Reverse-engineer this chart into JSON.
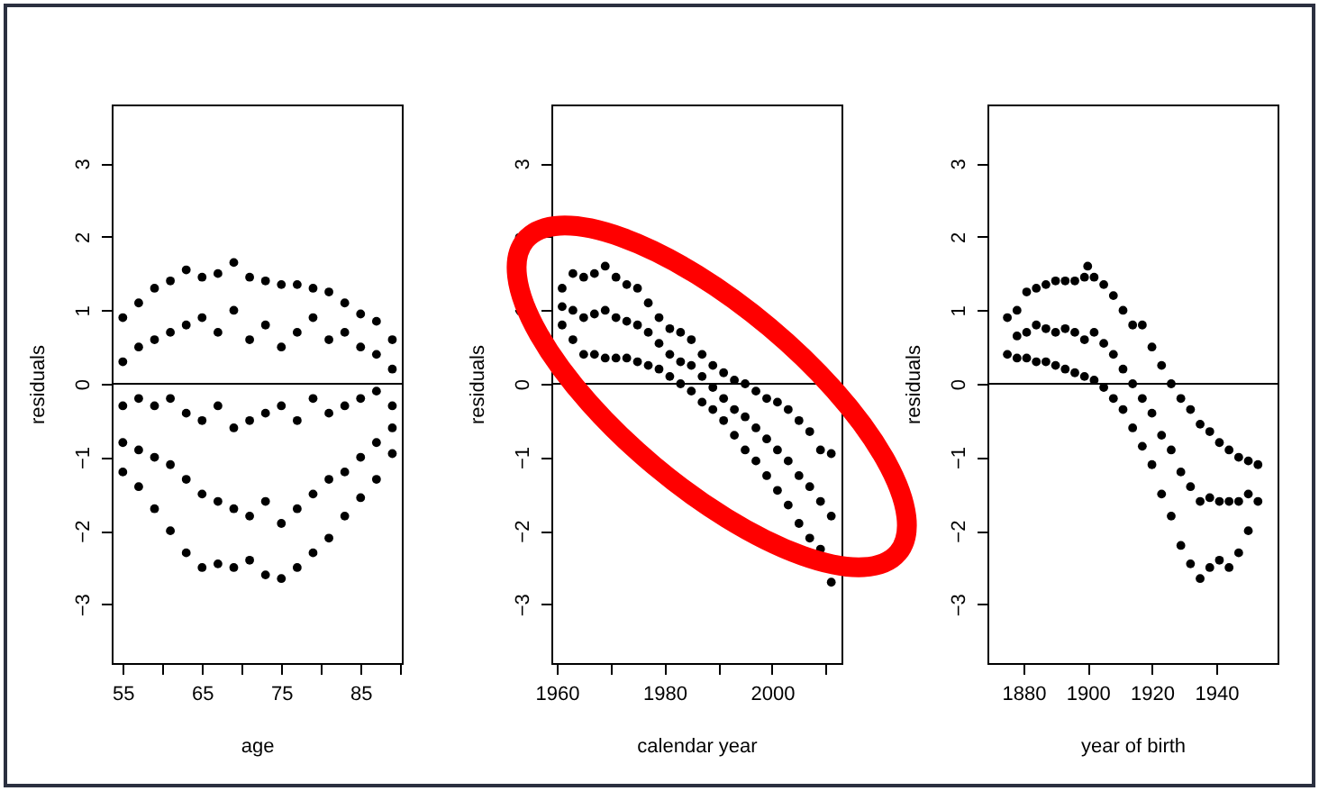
{
  "chart_data": [
    {
      "type": "scatter",
      "xlabel": "age",
      "ylabel": "residuals",
      "marker": "circle",
      "grid": false,
      "xlim": [
        53.6,
        90.2
      ],
      "xticks": [
        55,
        {
          "value": 60,
          "label": null
        },
        65,
        {
          "value": 70,
          "label": null
        },
        75,
        {
          "value": 80,
          "label": null
        },
        85,
        {
          "value": 90,
          "label": null
        }
      ],
      "ylim": [
        -3.8,
        3.8
      ],
      "yticks": [
        -3,
        -2,
        -1,
        0,
        1,
        2,
        3
      ],
      "ref_lines": [
        {
          "axis": "y",
          "value": 0,
          "color": "#000000"
        }
      ],
      "series": [
        {
          "color": "#000000",
          "x": [
            55,
            55,
            55,
            55,
            55,
            57,
            57,
            57,
            57,
            57,
            59,
            59,
            59,
            59,
            59,
            61,
            61,
            61,
            61,
            61,
            63,
            63,
            63,
            63,
            63,
            65,
            65,
            65,
            65,
            65,
            67,
            67,
            67,
            67,
            67,
            69,
            69,
            69,
            69,
            69,
            71,
            71,
            71,
            71,
            71,
            73,
            73,
            73,
            73,
            73,
            75,
            75,
            75,
            75,
            75,
            77,
            77,
            77,
            77,
            77,
            79,
            79,
            79,
            79,
            79,
            81,
            81,
            81,
            81,
            81,
            83,
            83,
            83,
            83,
            83,
            85,
            85,
            85,
            85,
            85,
            87,
            87,
            87,
            87,
            87,
            89,
            89,
            89,
            89,
            89
          ],
          "values": [
            0.9,
            0.3,
            -0.3,
            -0.8,
            -1.2,
            1.1,
            0.5,
            -0.2,
            -0.9,
            -1.4,
            1.3,
            0.6,
            -0.3,
            -1.0,
            -1.7,
            1.4,
            0.7,
            -0.2,
            -1.1,
            -2.0,
            1.55,
            0.8,
            -0.4,
            -1.3,
            -2.3,
            1.45,
            0.9,
            -0.5,
            -1.5,
            -2.5,
            1.5,
            0.7,
            -0.3,
            -1.6,
            -2.45,
            1.65,
            1.0,
            -0.6,
            -1.7,
            -2.5,
            1.45,
            0.6,
            -0.5,
            -1.8,
            -2.4,
            1.4,
            0.8,
            -0.4,
            -1.6,
            -2.6,
            1.35,
            0.5,
            -0.3,
            -1.9,
            -2.65,
            1.35,
            0.7,
            -0.5,
            -1.7,
            -2.5,
            1.3,
            0.9,
            -0.2,
            -1.5,
            -2.3,
            1.25,
            0.6,
            -0.4,
            -1.3,
            -2.1,
            1.1,
            0.7,
            -0.3,
            -1.2,
            -1.8,
            0.95,
            0.5,
            -0.2,
            -1.0,
            -1.55,
            0.85,
            0.4,
            -0.1,
            -0.8,
            -1.3,
            0.6,
            0.2,
            -0.3,
            -0.6,
            -0.95
          ]
        }
      ]
    },
    {
      "type": "scatter",
      "xlabel": "calendar year",
      "ylabel": "residuals",
      "marker": "circle",
      "grid": false,
      "xlim": [
        1959,
        2012.9
      ],
      "xticks": [
        1960,
        {
          "value": 1970,
          "label": null
        },
        1980,
        {
          "value": 1990,
          "label": null
        },
        2000,
        {
          "value": 2010,
          "label": null
        }
      ],
      "ylim": [
        -3.8,
        3.8
      ],
      "yticks": [
        -3,
        -2,
        -1,
        0,
        1,
        2,
        3
      ],
      "ref_lines": [
        {
          "axis": "y",
          "value": 0,
          "color": "#000000"
        }
      ],
      "series": [
        {
          "color": "#000000",
          "x": [
            1961,
            1961,
            1961,
            1963,
            1963,
            1963,
            1965,
            1965,
            1965,
            1967,
            1967,
            1967,
            1969,
            1969,
            1969,
            1971,
            1971,
            1971,
            1973,
            1973,
            1973,
            1975,
            1975,
            1975,
            1977,
            1977,
            1977,
            1979,
            1979,
            1979,
            1981,
            1981,
            1981,
            1983,
            1983,
            1983,
            1985,
            1985,
            1985,
            1987,
            1987,
            1987,
            1989,
            1989,
            1989,
            1991,
            1991,
            1991,
            1993,
            1993,
            1993,
            1995,
            1995,
            1995,
            1997,
            1997,
            1997,
            1999,
            1999,
            1999,
            2001,
            2001,
            2001,
            2003,
            2003,
            2003,
            2005,
            2005,
            2005,
            2007,
            2007,
            2007,
            2009,
            2009,
            2009,
            2011,
            2011,
            2011
          ],
          "values": [
            1.3,
            1.05,
            0.8,
            1.5,
            1.0,
            0.6,
            1.45,
            0.9,
            0.4,
            1.5,
            0.95,
            0.4,
            1.6,
            1.0,
            0.35,
            1.45,
            0.9,
            0.35,
            1.35,
            0.85,
            0.35,
            1.3,
            0.8,
            0.3,
            1.1,
            0.7,
            0.25,
            0.9,
            0.55,
            0.2,
            0.75,
            0.4,
            0.1,
            0.7,
            0.3,
            0.0,
            0.6,
            0.25,
            -0.1,
            0.4,
            0.1,
            -0.25,
            0.25,
            -0.05,
            -0.35,
            0.15,
            -0.2,
            -0.5,
            0.05,
            -0.35,
            -0.7,
            0.0,
            -0.45,
            -0.9,
            -0.1,
            -0.6,
            -1.05,
            -0.2,
            -0.75,
            -1.25,
            -0.25,
            -0.9,
            -1.45,
            -0.35,
            -1.05,
            -1.65,
            -0.5,
            -1.25,
            -1.9,
            -0.65,
            -1.4,
            -2.1,
            -0.9,
            -1.6,
            -2.25,
            -0.95,
            -1.8,
            -2.7
          ]
        }
      ]
    },
    {
      "type": "scatter",
      "xlabel": "year of birth",
      "ylabel": "residuals",
      "marker": "circle",
      "grid": false,
      "xlim": [
        1868.8,
        1959.1
      ],
      "xticks": [
        1880,
        1900,
        1920,
        1940
      ],
      "ylim": [
        -3.8,
        3.8
      ],
      "yticks": [
        -3,
        -2,
        -1,
        0,
        1,
        2,
        3
      ],
      "ref_lines": [
        {
          "axis": "y",
          "value": 0,
          "color": "#000000"
        }
      ],
      "series": [
        {
          "color": "#000000",
          "x": [
            1875,
            1875,
            1878,
            1878,
            1878,
            1881,
            1881,
            1881,
            1884,
            1884,
            1884,
            1887,
            1887,
            1887,
            1890,
            1890,
            1890,
            1893,
            1893,
            1893,
            1896,
            1896,
            1896,
            1899,
            1899,
            1899,
            1900,
            1902,
            1902,
            1902,
            1905,
            1905,
            1905,
            1908,
            1908,
            1908,
            1911,
            1911,
            1911,
            1914,
            1914,
            1914,
            1917,
            1917,
            1917,
            1920,
            1920,
            1920,
            1923,
            1923,
            1923,
            1926,
            1926,
            1926,
            1929,
            1929,
            1929,
            1932,
            1932,
            1932,
            1935,
            1935,
            1935,
            1938,
            1938,
            1938,
            1941,
            1941,
            1941,
            1944,
            1944,
            1944,
            1947,
            1947,
            1947,
            1950,
            1950,
            1950,
            1953,
            1953
          ],
          "values": [
            0.9,
            0.4,
            1.0,
            0.65,
            0.35,
            1.25,
            0.7,
            0.35,
            1.3,
            0.8,
            0.3,
            1.35,
            0.75,
            0.3,
            1.4,
            0.7,
            0.25,
            1.4,
            0.75,
            0.2,
            1.4,
            0.7,
            0.15,
            1.45,
            0.6,
            0.1,
            1.6,
            1.45,
            0.7,
            0.05,
            1.35,
            0.55,
            -0.05,
            1.2,
            0.4,
            -0.2,
            1.0,
            0.2,
            -0.35,
            0.8,
            0.0,
            -0.6,
            0.8,
            -0.2,
            -0.85,
            0.5,
            -0.4,
            -1.1,
            0.25,
            -0.7,
            -1.5,
            0.0,
            -0.9,
            -1.8,
            -0.2,
            -1.2,
            -2.2,
            -0.35,
            -1.4,
            -2.45,
            -0.55,
            -1.6,
            -2.65,
            -0.65,
            -1.55,
            -2.5,
            -0.8,
            -1.6,
            -2.4,
            -0.9,
            -1.6,
            -2.5,
            -1.0,
            -1.6,
            -2.3,
            -1.05,
            -1.5,
            -2.0,
            -1.1,
            -1.6
          ]
        }
      ]
    }
  ]
}
